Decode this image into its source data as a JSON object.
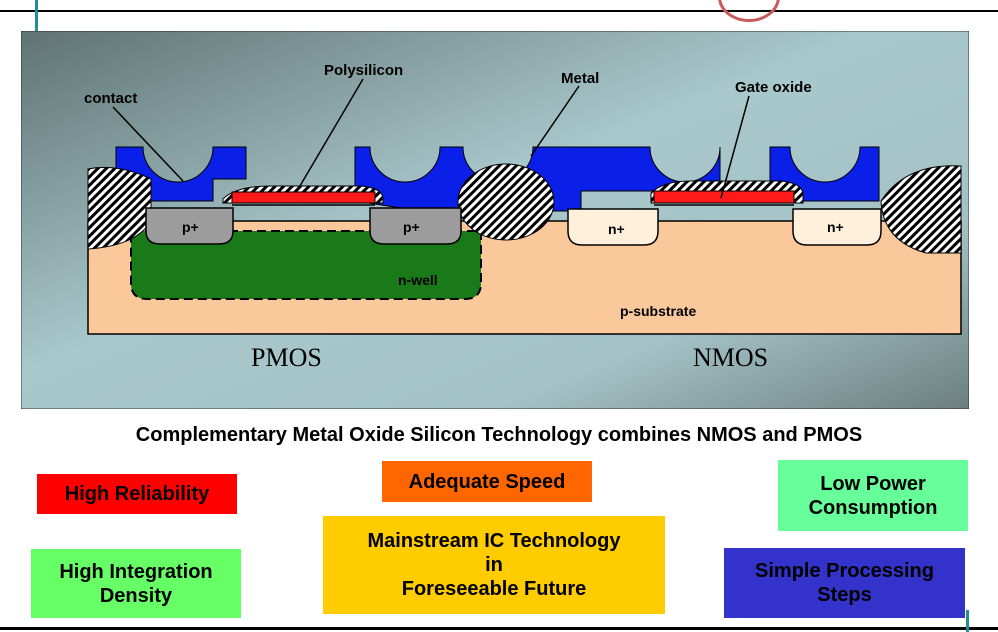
{
  "diagram": {
    "labels": {
      "polysilicon": "Polysilicon",
      "metal": "Metal",
      "contact": "contact",
      "gate_oxide": "Gate oxide",
      "p_plus_left": "p+",
      "p_plus_right": "p+",
      "n_plus_left": "n+",
      "n_plus_right": "n+",
      "n_well": "n-well",
      "p_substrate": "p-substrate",
      "pmos": "PMOS",
      "nmos": "NMOS"
    },
    "colors": {
      "metal": "#0a1fe8",
      "polysilicon": "#ff1a1a",
      "n_well": "#1a7a1a",
      "p_substrate": "#fac89a",
      "p_plus": "#9c9c9c",
      "n_plus": "#fff0dc"
    }
  },
  "caption": "Complementary Metal Oxide Silicon Technology combines NMOS and PMOS",
  "features": {
    "high_reliability": {
      "text": "High Reliability",
      "color": "#ff0000"
    },
    "adequate_speed": {
      "text": "Adequate Speed",
      "color": "#ff6600"
    },
    "low_power": {
      "text": "Low Power\nConsumption",
      "color": "#66ff99"
    },
    "mainstream": {
      "text": "Mainstream IC Technology\nin\nForeseeable Future",
      "color": "#ffcc00"
    },
    "high_integration": {
      "text": "High Integration\nDensity",
      "color": "#66ff66"
    },
    "simple_processing": {
      "text": "Simple Processing\nSteps",
      "color": "#3333cc"
    }
  }
}
